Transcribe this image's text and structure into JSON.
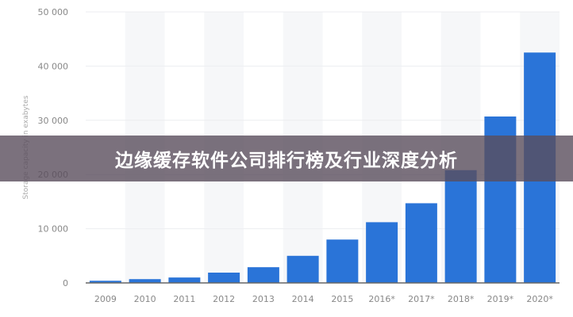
{
  "banner": {
    "title": "边缘缓存软件公司排行榜及行业深度分析"
  },
  "chart_data": {
    "type": "bar",
    "categories": [
      "2009",
      "2010",
      "2011",
      "2012",
      "2013",
      "2014",
      "2015",
      "2016*",
      "2017*",
      "2018*",
      "2019*",
      "2020*"
    ],
    "values": [
      400,
      700,
      1000,
      1900,
      2900,
      5000,
      8000,
      11200,
      14700,
      20800,
      30700,
      42500
    ],
    "ylabel": "Storage capacity in exabytes",
    "ylim": [
      0,
      50000
    ],
    "yticks": [
      0,
      10000,
      20000,
      30000,
      40000,
      50000
    ],
    "ytick_labels": [
      "0",
      "10 000",
      "20 000",
      "30 000",
      "40 000",
      "50 000"
    ],
    "grid": true,
    "bar_color": "#2a74d8"
  }
}
